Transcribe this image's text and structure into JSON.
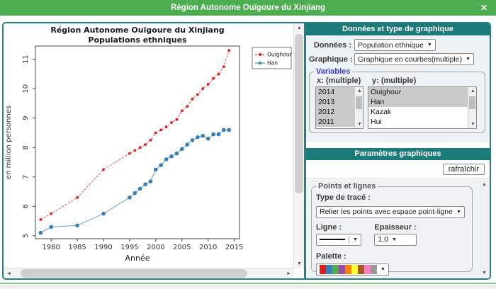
{
  "window": {
    "title": "Région Autonome Ouïgoure du Xinjiang"
  },
  "icons": {
    "close": "✕",
    "dropdown": "▼",
    "up": "▲",
    "down": "▼",
    "left": "◄",
    "right": "►"
  },
  "chart_data": {
    "type": "line",
    "title_lines": [
      "Région Autonome Ouïgoure du Xinjiang",
      "Populations ethniques"
    ],
    "xlabel": "Année",
    "ylabel": "en million personnes",
    "x": [
      1978,
      1980,
      1985,
      1990,
      1995,
      1996,
      1997,
      1998,
      1999,
      2000,
      2001,
      2002,
      2003,
      2004,
      2005,
      2006,
      2007,
      2008,
      2009,
      2010,
      2011,
      2012,
      2013,
      2014
    ],
    "series": [
      {
        "name": "Ouïghour",
        "color": "#e41a1c",
        "line_style": "dashed",
        "point_radius": 1.9,
        "values": [
          5.55,
          5.75,
          6.3,
          7.25,
          7.8,
          7.9,
          8.0,
          8.1,
          8.25,
          8.5,
          8.6,
          8.7,
          8.85,
          8.95,
          9.25,
          9.4,
          9.65,
          9.8,
          10.0,
          10.15,
          10.35,
          10.5,
          10.75,
          11.3
        ]
      },
      {
        "name": "Han",
        "color": "#377eb8",
        "line_style": "solid",
        "point_radius": 2.8,
        "values": [
          5.1,
          5.3,
          5.35,
          5.75,
          6.3,
          6.45,
          6.6,
          6.75,
          6.85,
          7.25,
          7.4,
          7.6,
          7.7,
          7.8,
          7.95,
          8.1,
          8.25,
          8.35,
          8.4,
          8.3,
          8.45,
          8.45,
          8.6,
          8.6
        ]
      }
    ],
    "xlim": [
      1977,
      2016
    ],
    "ylim": [
      4.9,
      11.45
    ],
    "xticks": [
      1980,
      1985,
      1990,
      1995,
      2000,
      2005,
      2010,
      2015
    ],
    "yticks": [
      5,
      6,
      7,
      8,
      9,
      10,
      11
    ],
    "grid": false,
    "legend_position": "top-right-outside"
  },
  "data_section": {
    "title": "Données et type de graphique",
    "donnees_label": "Données :",
    "donnees_value": "Population ethnique",
    "graphique_label": "Graphique :",
    "graphique_value": "Graphique en courbes(multiple)",
    "variables_legend": "Variables",
    "x_label": "x: (multiple)",
    "y_label": "y: (multiple)",
    "x_options": [
      {
        "label": "2014",
        "selected": true
      },
      {
        "label": "2013",
        "selected": true
      },
      {
        "label": "2012",
        "selected": true
      },
      {
        "label": "2011",
        "selected": true
      }
    ],
    "y_options": [
      {
        "label": "Ouighour",
        "selected": true
      },
      {
        "label": "Han",
        "selected": true
      },
      {
        "label": "Kazak",
        "selected": false
      },
      {
        "label": "Hui",
        "selected": false
      }
    ]
  },
  "params_section": {
    "title": "Paramètres graphiques",
    "refresh_label": "rafraîchir",
    "fieldset_legend": "Points et lignes",
    "trace_label": "Type de tracé :",
    "trace_value": "Relier les points avec espace point-ligne",
    "ligne_label": "Ligne :",
    "epaisseur_label": "Epaisseur :",
    "epaisseur_value": "1.0",
    "palette_label": "Palette :",
    "palette_colors": [
      "#e41a1c",
      "#377eb8",
      "#4daf4a",
      "#984ea3",
      "#ff7f00",
      "#ffff33",
      "#a65628",
      "#f781bf",
      "#999999"
    ]
  },
  "colors": {
    "titlebar_green": "#4cae50",
    "header_teal": "#1b7a7a",
    "frame_border": "#2a7f80"
  }
}
